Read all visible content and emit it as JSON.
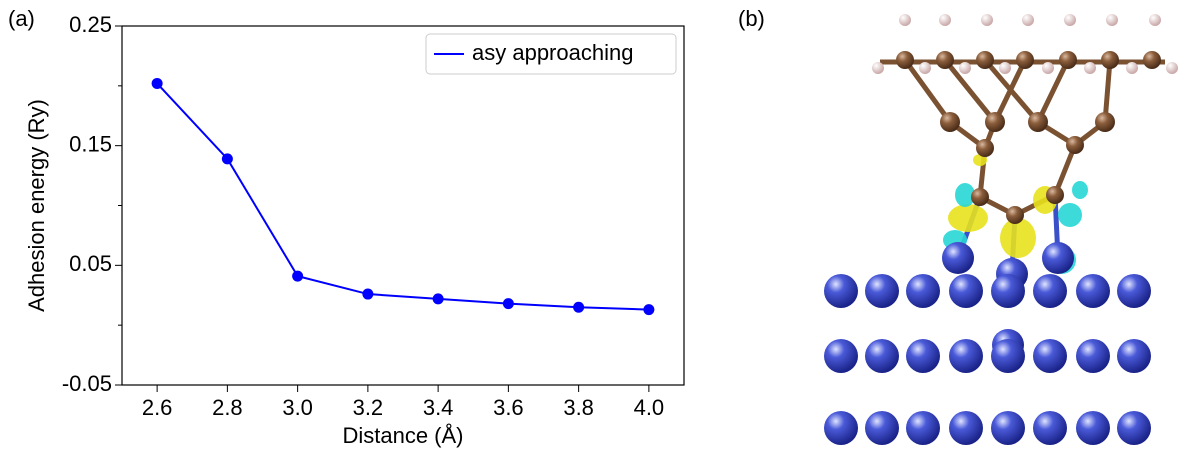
{
  "panel_labels": [
    "(a)",
    "(b)"
  ],
  "chart_data": {
    "type": "line",
    "xlabel": "Distance (Å)",
    "ylabel": "Adhesion energy (Ry)",
    "x": [
      2.6,
      2.8,
      3.0,
      3.2,
      3.4,
      3.6,
      3.8,
      4.0
    ],
    "series": [
      {
        "name": "asy approaching",
        "color": "#0000ff",
        "values": [
          0.202,
          0.139,
          0.041,
          0.026,
          0.022,
          0.018,
          0.015,
          0.013
        ]
      }
    ],
    "xlim": [
      2.5,
      4.1
    ],
    "xticks": [
      2.6,
      2.8,
      {
        "value": 3.0,
        "label": "3.0"
      },
      3.2,
      3.4,
      3.6,
      3.8,
      {
        "value": 4.0,
        "label": "4.0"
      }
    ],
    "ylim": [
      -0.05,
      0.25
    ],
    "yticks": [
      -0.05,
      0.05,
      0.15,
      0.25
    ],
    "yminorticks": [
      0,
      0.1,
      0.2
    ],
    "legend": "upper right",
    "grid": false
  }
}
